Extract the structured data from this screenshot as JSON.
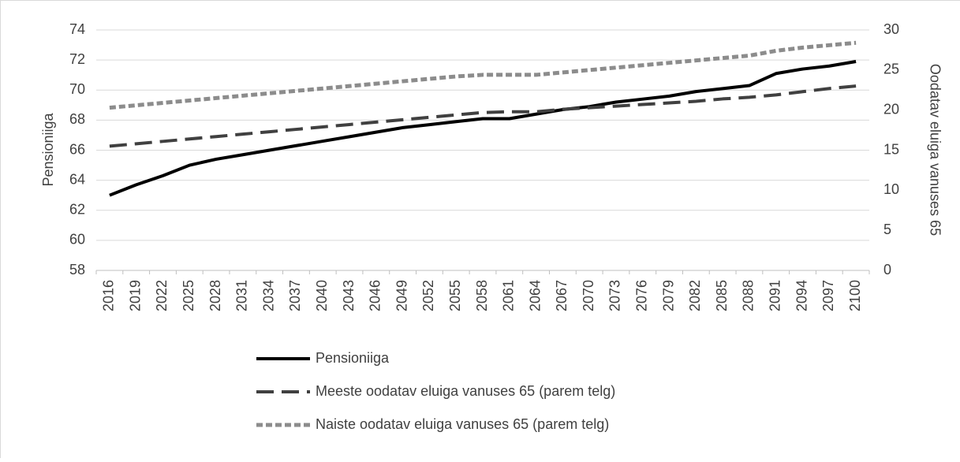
{
  "chart_data": {
    "type": "line",
    "categories": [
      "2016",
      "2019",
      "2022",
      "2025",
      "2028",
      "2031",
      "2034",
      "2037",
      "2040",
      "2043",
      "2046",
      "2049",
      "2052",
      "2055",
      "2058",
      "2061",
      "2064",
      "2067",
      "2070",
      "2073",
      "2076",
      "2079",
      "2082",
      "2085",
      "2088",
      "2091",
      "2094",
      "2097",
      "2100"
    ],
    "y_label": "Pensioniiga",
    "y2_label": "Oodatav eluiga vanuses 65",
    "ylim": [
      58,
      74
    ],
    "yticks": [
      58,
      60,
      62,
      64,
      66,
      68,
      70,
      72,
      74
    ],
    "y2lim": [
      0,
      30
    ],
    "y2ticks": [
      0,
      5,
      10,
      15,
      20,
      25,
      30
    ],
    "grid": true,
    "legend": "bottom",
    "series": [
      {
        "name": "Pensioniiga",
        "color": "#000000",
        "dash": "solid",
        "values": [
          63.0,
          63.7,
          64.3,
          65.0,
          65.4,
          65.7,
          66.0,
          66.3,
          66.6,
          66.9,
          67.2,
          67.5,
          67.7,
          67.9,
          68.1,
          68.1,
          68.4,
          68.7,
          68.9,
          69.2,
          69.4,
          69.6,
          69.9,
          70.1,
          70.3,
          71.1,
          71.4,
          71.6,
          71.9
        ]
      },
      {
        "name": "Meeste oodatav eluiga vanuses 65 (parem telg)",
        "color": "#404040",
        "dash": "long",
        "axis": "y2",
        "values": [
          15.5,
          15.8,
          16.1,
          16.4,
          16.7,
          17.0,
          17.3,
          17.6,
          17.9,
          18.2,
          18.5,
          18.8,
          19.1,
          19.4,
          19.7,
          19.8,
          19.8,
          20.1,
          20.3,
          20.5,
          20.7,
          20.9,
          21.1,
          21.4,
          21.6,
          21.9,
          22.3,
          22.7,
          23.0
        ]
      },
      {
        "name": "Naiste oodatav eluiga vanuses 65 (parem telg)",
        "color": "#8c8c8c",
        "dash": "short",
        "axis": "y2",
        "values": [
          20.3,
          20.6,
          20.9,
          21.2,
          21.5,
          21.8,
          22.1,
          22.4,
          22.7,
          23.0,
          23.3,
          23.6,
          23.9,
          24.2,
          24.4,
          24.4,
          24.4,
          24.7,
          25.0,
          25.3,
          25.6,
          25.9,
          26.2,
          26.5,
          26.8,
          27.4,
          27.8,
          28.1,
          28.4
        ]
      }
    ]
  }
}
